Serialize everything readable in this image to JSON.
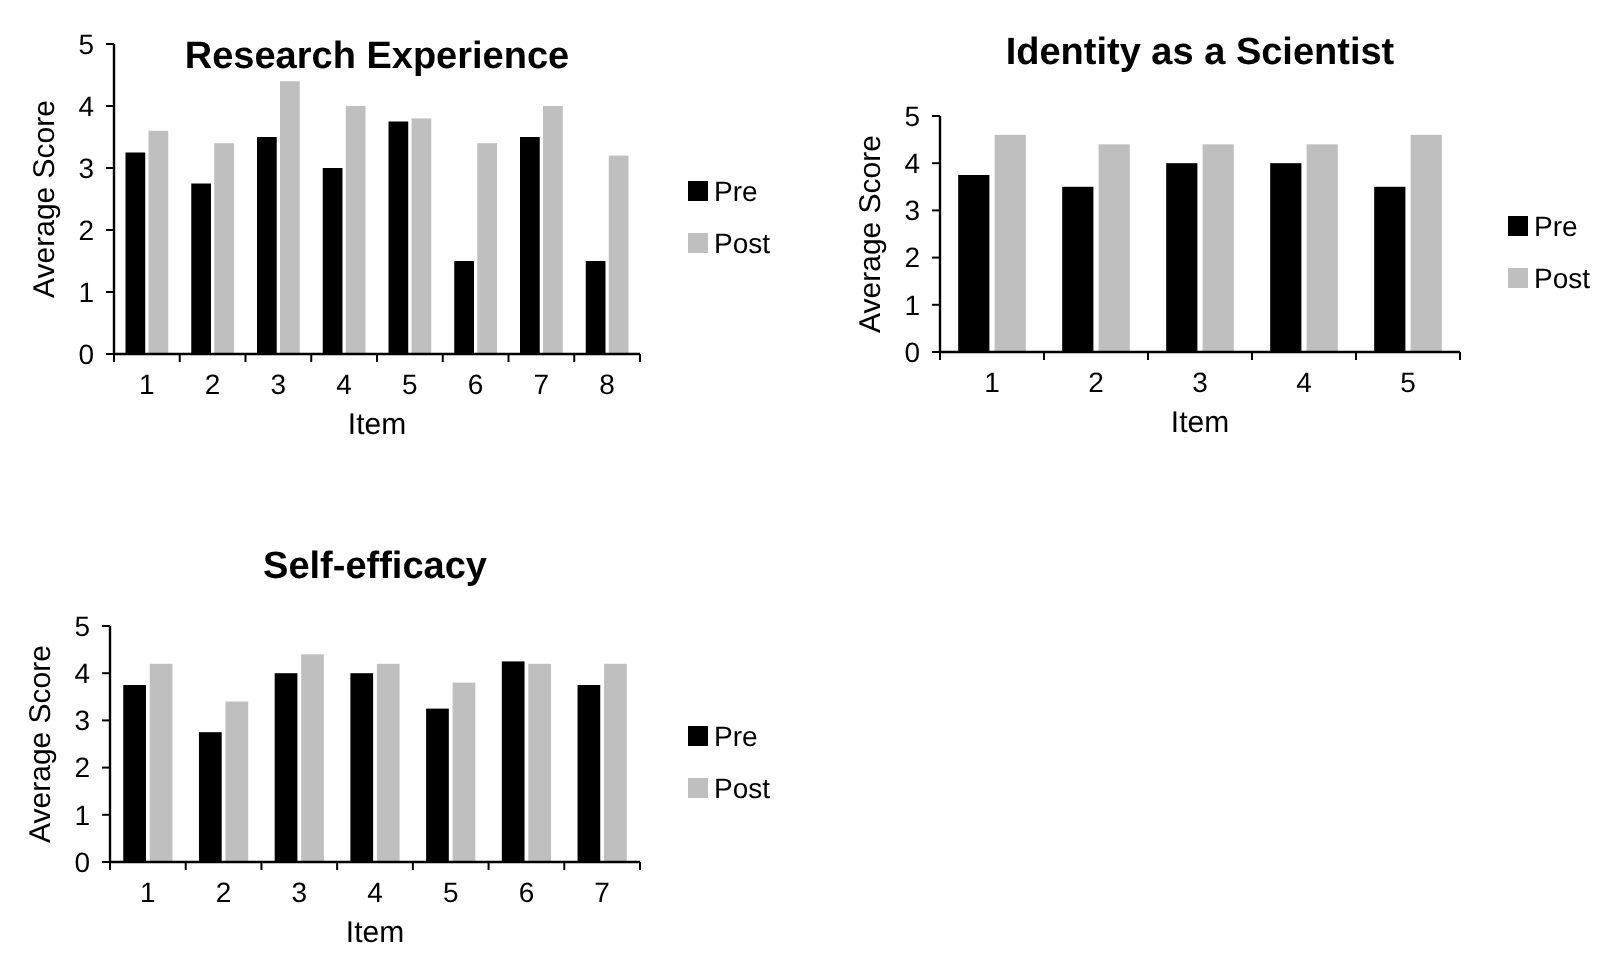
{
  "chart_data": [
    {
      "type": "bar",
      "title": "Research Experience",
      "xlabel": "Item",
      "ylabel": "Average Score",
      "categories": [
        "1",
        "2",
        "3",
        "4",
        "5",
        "6",
        "7",
        "8"
      ],
      "ylim": [
        0,
        5
      ],
      "yticks": [
        0,
        1,
        2,
        3,
        4,
        5
      ],
      "legend": "right",
      "grid": false,
      "series": [
        {
          "name": "Pre",
          "color": "#000000",
          "values": [
            3.25,
            2.75,
            3.5,
            3,
            3.75,
            1.5,
            3.5,
            1.5
          ]
        },
        {
          "name": "Post",
          "color": "#bfbfbf",
          "values": [
            3.6,
            3.4,
            4.4,
            4,
            3.8,
            3.4,
            4,
            3.2
          ]
        }
      ]
    },
    {
      "type": "bar",
      "title": "Identity as a Scientist",
      "xlabel": "Item",
      "ylabel": "Average Score",
      "categories": [
        "1",
        "2",
        "3",
        "4",
        "5"
      ],
      "ylim": [
        0,
        5
      ],
      "yticks": [
        0,
        1,
        2,
        3,
        4,
        5
      ],
      "legend": "right",
      "grid": false,
      "series": [
        {
          "name": "Pre",
          "color": "#000000",
          "values": [
            3.75,
            3.5,
            4,
            4,
            3.5
          ]
        },
        {
          "name": "Post",
          "color": "#bfbfbf",
          "values": [
            4.6,
            4.4,
            4.4,
            4.4,
            4.6
          ]
        }
      ]
    },
    {
      "type": "bar",
      "title": "Self-efficacy",
      "xlabel": "Item",
      "ylabel": "Average Score",
      "categories": [
        "1",
        "2",
        "3",
        "4",
        "5",
        "6",
        "7"
      ],
      "ylim": [
        0,
        5
      ],
      "yticks": [
        0,
        1,
        2,
        3,
        4,
        5
      ],
      "legend": "right",
      "grid": false,
      "series": [
        {
          "name": "Pre",
          "color": "#000000",
          "values": [
            3.75,
            2.75,
            4,
            4,
            3.25,
            4.25,
            3.75
          ]
        },
        {
          "name": "Post",
          "color": "#bfbfbf",
          "values": [
            4.2,
            3.4,
            4.4,
            4.2,
            3.8,
            4.2,
            4.2
          ]
        }
      ]
    }
  ]
}
